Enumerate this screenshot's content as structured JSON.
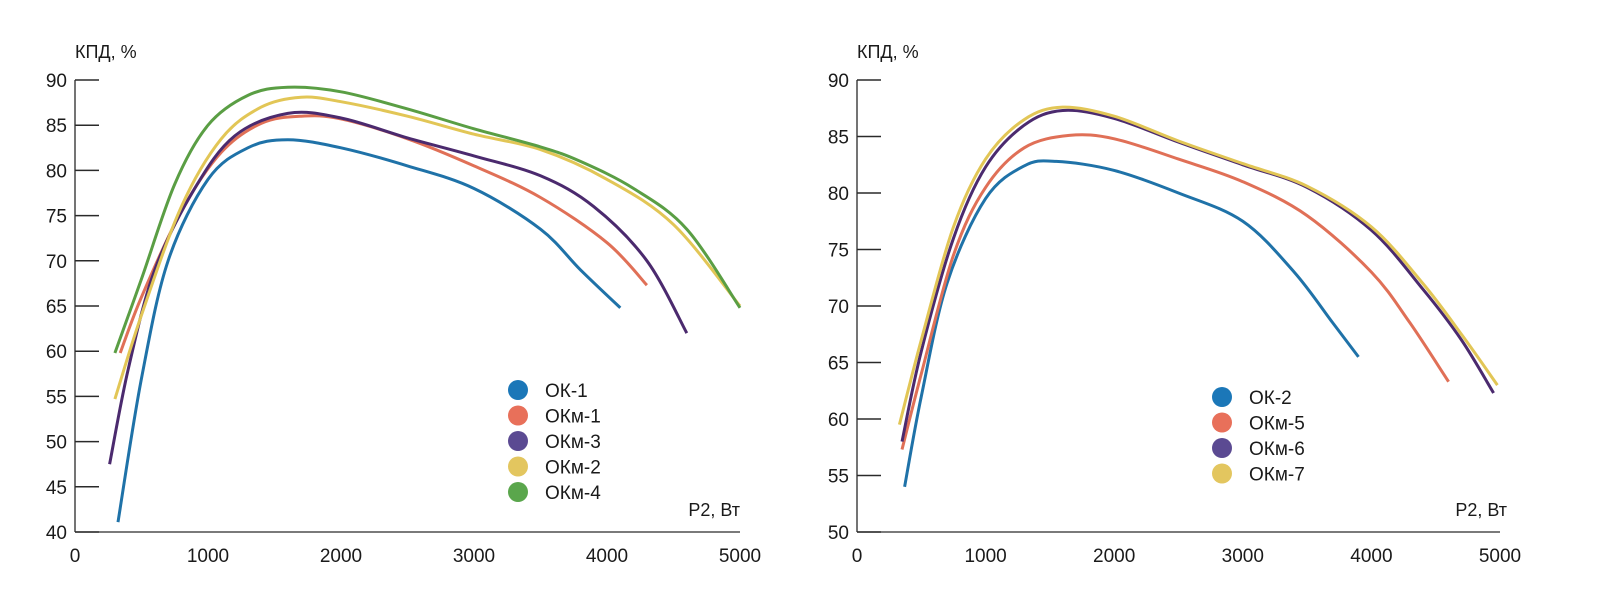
{
  "chart_data": [
    {
      "type": "line",
      "title": "",
      "ylabel": "КПД, %",
      "xlabel": "P2, Вт",
      "xlim": [
        0,
        5000
      ],
      "ylim": [
        40,
        90
      ],
      "xticks": [
        0,
        1000,
        2000,
        3000,
        4000,
        5000
      ],
      "yticks": [
        40,
        45,
        50,
        55,
        60,
        65,
        70,
        75,
        80,
        85,
        90
      ],
      "grid": false,
      "legend_position": "bottom-right",
      "series": [
        {
          "name": "ОК-1",
          "color": "#1f72a8",
          "marker_color": "#1b77b8",
          "points": [
            [
              323,
              41.1
            ],
            [
              500,
              57
            ],
            [
              700,
              70
            ],
            [
              1000,
              79
            ],
            [
              1300,
              82.5
            ],
            [
              1600,
              83.4
            ],
            [
              2000,
              82.5
            ],
            [
              2500,
              80.5
            ],
            [
              3000,
              78
            ],
            [
              3500,
              73.5
            ],
            [
              3800,
              69
            ],
            [
              4100,
              64.8
            ]
          ]
        },
        {
          "name": "ОКм-1",
          "color": "#e07057",
          "marker_color": "#e8705a",
          "points": [
            [
              340,
              59.8
            ],
            [
              500,
              66
            ],
            [
              800,
              75.5
            ],
            [
              1100,
              82
            ],
            [
              1400,
              85.2
            ],
            [
              1700,
              86
            ],
            [
              2000,
              85.7
            ],
            [
              2500,
              83.5
            ],
            [
              3000,
              80.5
            ],
            [
              3500,
              77
            ],
            [
              4000,
              72
            ],
            [
              4300,
              67.3
            ]
          ]
        },
        {
          "name": "ОКм-3",
          "color": "#4b2a6e",
          "marker_color": "#5b4a92",
          "points": [
            [
              260,
              47.5
            ],
            [
              400,
              58
            ],
            [
              600,
              69
            ],
            [
              900,
              78
            ],
            [
              1200,
              83.8
            ],
            [
              1600,
              86.3
            ],
            [
              2000,
              85.8
            ],
            [
              2500,
              83.6
            ],
            [
              3000,
              81.6
            ],
            [
              3500,
              79.4
            ],
            [
              3900,
              76
            ],
            [
              4300,
              70
            ],
            [
              4600,
              62
            ]
          ]
        },
        {
          "name": "ОКм-2",
          "color": "#e2c656",
          "marker_color": "#e3c65f",
          "points": [
            [
              300,
              54.7
            ],
            [
              500,
              64
            ],
            [
              800,
              76
            ],
            [
              1100,
              83.5
            ],
            [
              1400,
              87
            ],
            [
              1700,
              88.1
            ],
            [
              2000,
              87.6
            ],
            [
              2500,
              86
            ],
            [
              3000,
              84
            ],
            [
              3500,
              82.3
            ],
            [
              4000,
              79
            ],
            [
              4500,
              74
            ],
            [
              5000,
              65
            ]
          ]
        },
        {
          "name": "ОКм-4",
          "color": "#5a9e44",
          "marker_color": "#5aa64c",
          "points": [
            [
              300,
              59.8
            ],
            [
              500,
              68
            ],
            [
              750,
              78.5
            ],
            [
              1000,
              85
            ],
            [
              1300,
              88.3
            ],
            [
              1600,
              89.2
            ],
            [
              2000,
              88.7
            ],
            [
              2500,
              86.8
            ],
            [
              3000,
              84.6
            ],
            [
              3500,
              82.6
            ],
            [
              3800,
              81
            ],
            [
              4200,
              78
            ],
            [
              4600,
              73.5
            ],
            [
              5000,
              64.8
            ]
          ]
        }
      ]
    },
    {
      "type": "line",
      "title": "",
      "ylabel": "КПД, %",
      "xlabel": "P2, Вт",
      "xlim": [
        0,
        5000
      ],
      "ylim": [
        50,
        90
      ],
      "xticks": [
        0,
        1000,
        2000,
        3000,
        4000,
        5000
      ],
      "yticks": [
        50,
        55,
        60,
        65,
        70,
        75,
        80,
        85,
        90
      ],
      "grid": false,
      "legend_position": "bottom-right",
      "series": [
        {
          "name": "ОК-2",
          "color": "#1f72a8",
          "marker_color": "#1b77b8",
          "points": [
            [
              370,
              54
            ],
            [
              500,
              62
            ],
            [
              700,
              72
            ],
            [
              1000,
              79.5
            ],
            [
              1300,
              82.4
            ],
            [
              1550,
              82.8
            ],
            [
              2000,
              82
            ],
            [
              2500,
              80
            ],
            [
              3000,
              77.5
            ],
            [
              3400,
              73
            ],
            [
              3700,
              68.5
            ],
            [
              3900,
              65.5
            ]
          ]
        },
        {
          "name": "ОКм-5",
          "color": "#e07057",
          "marker_color": "#e8705a",
          "points": [
            [
              350,
              57.3
            ],
            [
              500,
              64
            ],
            [
              750,
              74.5
            ],
            [
              1000,
              80.5
            ],
            [
              1300,
              84
            ],
            [
              1650,
              85.1
            ],
            [
              2000,
              84.8
            ],
            [
              2500,
              83
            ],
            [
              3000,
              81
            ],
            [
              3500,
              78
            ],
            [
              4000,
              73
            ],
            [
              4300,
              68.5
            ],
            [
              4600,
              63.3
            ]
          ]
        },
        {
          "name": "ОКм-6",
          "color": "#4b2a6e",
          "marker_color": "#5b4a92",
          "points": [
            [
              350,
              58
            ],
            [
              500,
              66
            ],
            [
              750,
              76
            ],
            [
              1000,
              82.3
            ],
            [
              1300,
              86
            ],
            [
              1600,
              87.3
            ],
            [
              2000,
              86.6
            ],
            [
              2500,
              84.5
            ],
            [
              3000,
              82.5
            ],
            [
              3500,
              80.5
            ],
            [
              4000,
              76.7
            ],
            [
              4400,
              71.5
            ],
            [
              4700,
              67
            ],
            [
              4950,
              62.3
            ]
          ]
        },
        {
          "name": "ОКм-7",
          "color": "#e2c656",
          "marker_color": "#e3c65f",
          "points": [
            [
              330,
              59.5
            ],
            [
              500,
              67
            ],
            [
              750,
              77
            ],
            [
              1000,
              83
            ],
            [
              1300,
              86.5
            ],
            [
              1600,
              87.6
            ],
            [
              2000,
              86.8
            ],
            [
              2500,
              84.6
            ],
            [
              3000,
              82.6
            ],
            [
              3500,
              80.6
            ],
            [
              4000,
              77
            ],
            [
              4400,
              72
            ],
            [
              4700,
              67.5
            ],
            [
              4980,
              63
            ]
          ]
        }
      ]
    }
  ]
}
